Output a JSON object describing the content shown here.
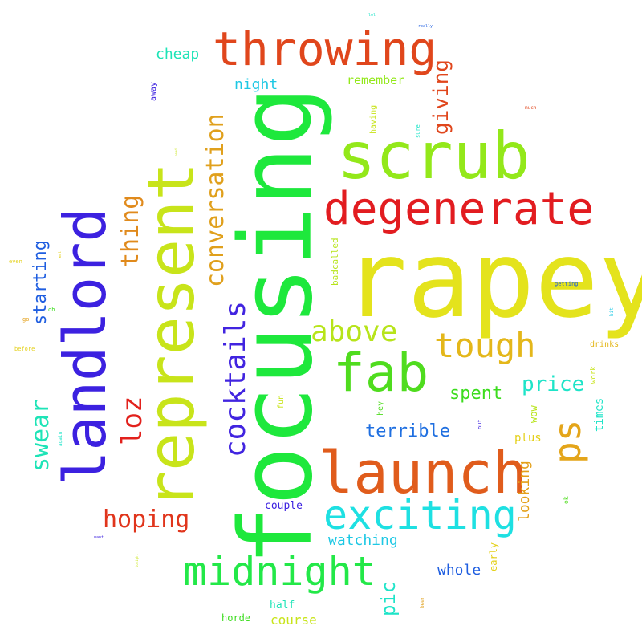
{
  "words": [
    {
      "text": "rapey",
      "color": "#e4e31c",
      "vertical": false
    },
    {
      "text": "focusing",
      "color": "#1ee83c",
      "vertical": true
    },
    {
      "text": "represent",
      "color": "#c8e41a",
      "vertical": true
    },
    {
      "text": "landlord",
      "color": "#3c21e0",
      "vertical": true
    },
    {
      "text": "scrub",
      "color": "#93e81a",
      "vertical": false
    },
    {
      "text": "throwing",
      "color": "#e0461c",
      "vertical": false
    },
    {
      "text": "launch",
      "color": "#e05c1c",
      "vertical": false
    },
    {
      "text": "degenerate",
      "color": "#e21c20",
      "vertical": false
    },
    {
      "text": "fab",
      "color": "#4fdc1e",
      "vertical": false
    },
    {
      "text": "exciting",
      "color": "#1ee0e2",
      "vertical": false
    },
    {
      "text": "midnight",
      "color": "#23e848",
      "vertical": false
    },
    {
      "text": "ps",
      "color": "#e4a51a",
      "vertical": true
    },
    {
      "text": "tough",
      "color": "#e4b71a",
      "vertical": false
    },
    {
      "text": "above",
      "color": "#b7e41a",
      "vertical": false
    },
    {
      "text": "cocktails",
      "color": "#4124e0",
      "vertical": true
    },
    {
      "text": "conversation",
      "color": "#e0a01c",
      "vertical": true
    },
    {
      "text": "loz",
      "color": "#e2211c",
      "vertical": true
    },
    {
      "text": "thing",
      "color": "#e08a1c",
      "vertical": true
    },
    {
      "text": "hoping",
      "color": "#e0351c",
      "vertical": false
    },
    {
      "text": "swear",
      "color": "#1ee4b7",
      "vertical": true
    },
    {
      "text": "giving",
      "color": "#e0461c",
      "vertical": true
    },
    {
      "text": "price",
      "color": "#1ee4c8",
      "vertical": false
    },
    {
      "text": "starting",
      "color": "#1f5ee0",
      "vertical": true
    },
    {
      "text": "spent",
      "color": "#3cdc1e",
      "vertical": false
    },
    {
      "text": "terrible",
      "color": "#1f6fe0",
      "vertical": false
    },
    {
      "text": "pic",
      "color": "#1ee4c8",
      "vertical": true
    },
    {
      "text": "watching",
      "color": "#1ec8e4",
      "vertical": false
    },
    {
      "text": "whole",
      "color": "#1f5ee0",
      "vertical": false
    },
    {
      "text": "looking",
      "color": "#e4a01a",
      "vertical": true
    },
    {
      "text": "night",
      "color": "#1ec8e4",
      "vertical": false
    },
    {
      "text": "cheap",
      "color": "#1ee4b7",
      "vertical": false
    },
    {
      "text": "remember",
      "color": "#93e81a",
      "vertical": false
    },
    {
      "text": "course",
      "color": "#c8e41a",
      "vertical": false
    },
    {
      "text": "half",
      "color": "#1ee4b7",
      "vertical": false
    },
    {
      "text": "horde",
      "color": "#3cdc1e",
      "vertical": false
    },
    {
      "text": "couple",
      "color": "#3c21e0",
      "vertical": false
    },
    {
      "text": "times",
      "color": "#1ee4c8",
      "vertical": true
    },
    {
      "text": "plus",
      "color": "#e4d01a",
      "vertical": false
    },
    {
      "text": "wow",
      "color": "#b7e41a",
      "vertical": true
    },
    {
      "text": "early",
      "color": "#e4d01a",
      "vertical": true
    },
    {
      "text": "drinks",
      "color": "#e4b71a",
      "vertical": false
    },
    {
      "text": "badcalled",
      "color": "#b7e41a",
      "vertical": true
    },
    {
      "text": "having",
      "color": "#c8e41a",
      "vertical": true
    },
    {
      "text": "away",
      "color": "#3c21e0",
      "vertical": true
    },
    {
      "text": "hey",
      "color": "#4fdc1e",
      "vertical": true
    },
    {
      "text": "fun",
      "color": "#c8e41a",
      "vertical": true
    },
    {
      "text": "work",
      "color": "#c8e41a",
      "vertical": true
    },
    {
      "text": "ok",
      "color": "#4fdc1e",
      "vertical": true
    },
    {
      "text": "out",
      "color": "#3c21e0",
      "vertical": true
    },
    {
      "text": "sure",
      "color": "#1ee4c8",
      "vertical": true
    },
    {
      "text": "getting",
      "color": "#1f5ee0",
      "vertical": false
    },
    {
      "text": "even",
      "color": "#e4d01a",
      "vertical": false
    },
    {
      "text": "before",
      "color": "#e4d01a",
      "vertical": false
    },
    {
      "text": "oh",
      "color": "#3cdc1e",
      "vertical": false
    },
    {
      "text": "go",
      "color": "#e4a01a",
      "vertical": false
    },
    {
      "text": "much",
      "color": "#e0461c",
      "vertical": false
    },
    {
      "text": "bit",
      "color": "#1ec8e4",
      "vertical": true
    },
    {
      "text": "again",
      "color": "#1ee4c8",
      "vertical": true
    },
    {
      "text": "beer",
      "color": "#e0a01c",
      "vertical": true
    },
    {
      "text": "need",
      "color": "#c8e41a",
      "vertical": true
    },
    {
      "text": "wat",
      "color": "#e4d01a",
      "vertical": true
    },
    {
      "text": "really",
      "color": "#1f5ee0",
      "vertical": false
    },
    {
      "text": "want",
      "color": "#3c21e0",
      "vertical": false
    },
    {
      "text": "tonight",
      "color": "#c8e41a",
      "vertical": true
    },
    {
      "text": "lol",
      "color": "#1ee4c8",
      "vertical": false
    }
  ]
}
